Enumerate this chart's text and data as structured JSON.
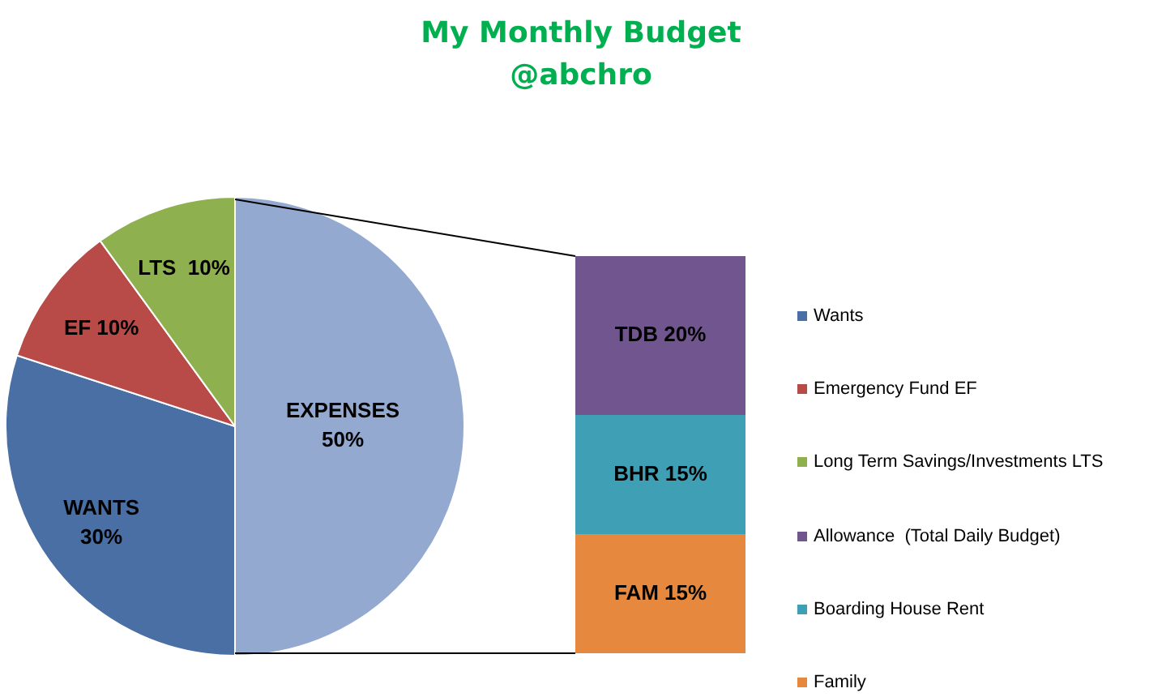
{
  "chart_data": [
    {
      "type": "pie",
      "title": "My Monthly Budget",
      "subtitle": "@abchro",
      "categories": [
        "Wants",
        "Emergency Fund EF",
        "Long Term Savings/Investments LTS",
        null
      ],
      "values": [
        30,
        10,
        10,
        50
      ],
      "colors": [
        "#4a6fa5",
        "#b84a47",
        "#8fb04f",
        "#93a9cf"
      ],
      "value_labels": [
        "WANTS 30%",
        "EF 10%",
        "LTS  10%",
        "EXPENSES 50%"
      ],
      "legend": "right"
    },
    {
      "type": "bar",
      "stacked": true,
      "tick_labels": false,
      "legend": "right",
      "categories": [
        null
      ],
      "series": [
        {
          "name": "Family",
          "color": "#e6883d",
          "values": [
            15
          ],
          "value_labels": [
            "FAM 15%"
          ]
        },
        {
          "name": "Boarding House Rent",
          "color": "#3fa0b5",
          "values": [
            15
          ],
          "value_labels": [
            "BHR 15%"
          ]
        },
        {
          "name": "Allowance  (Total Daily Budget)",
          "color": "#71558f",
          "values": [
            20
          ],
          "value_labels": [
            "TDB 20%"
          ]
        }
      ]
    }
  ]
}
